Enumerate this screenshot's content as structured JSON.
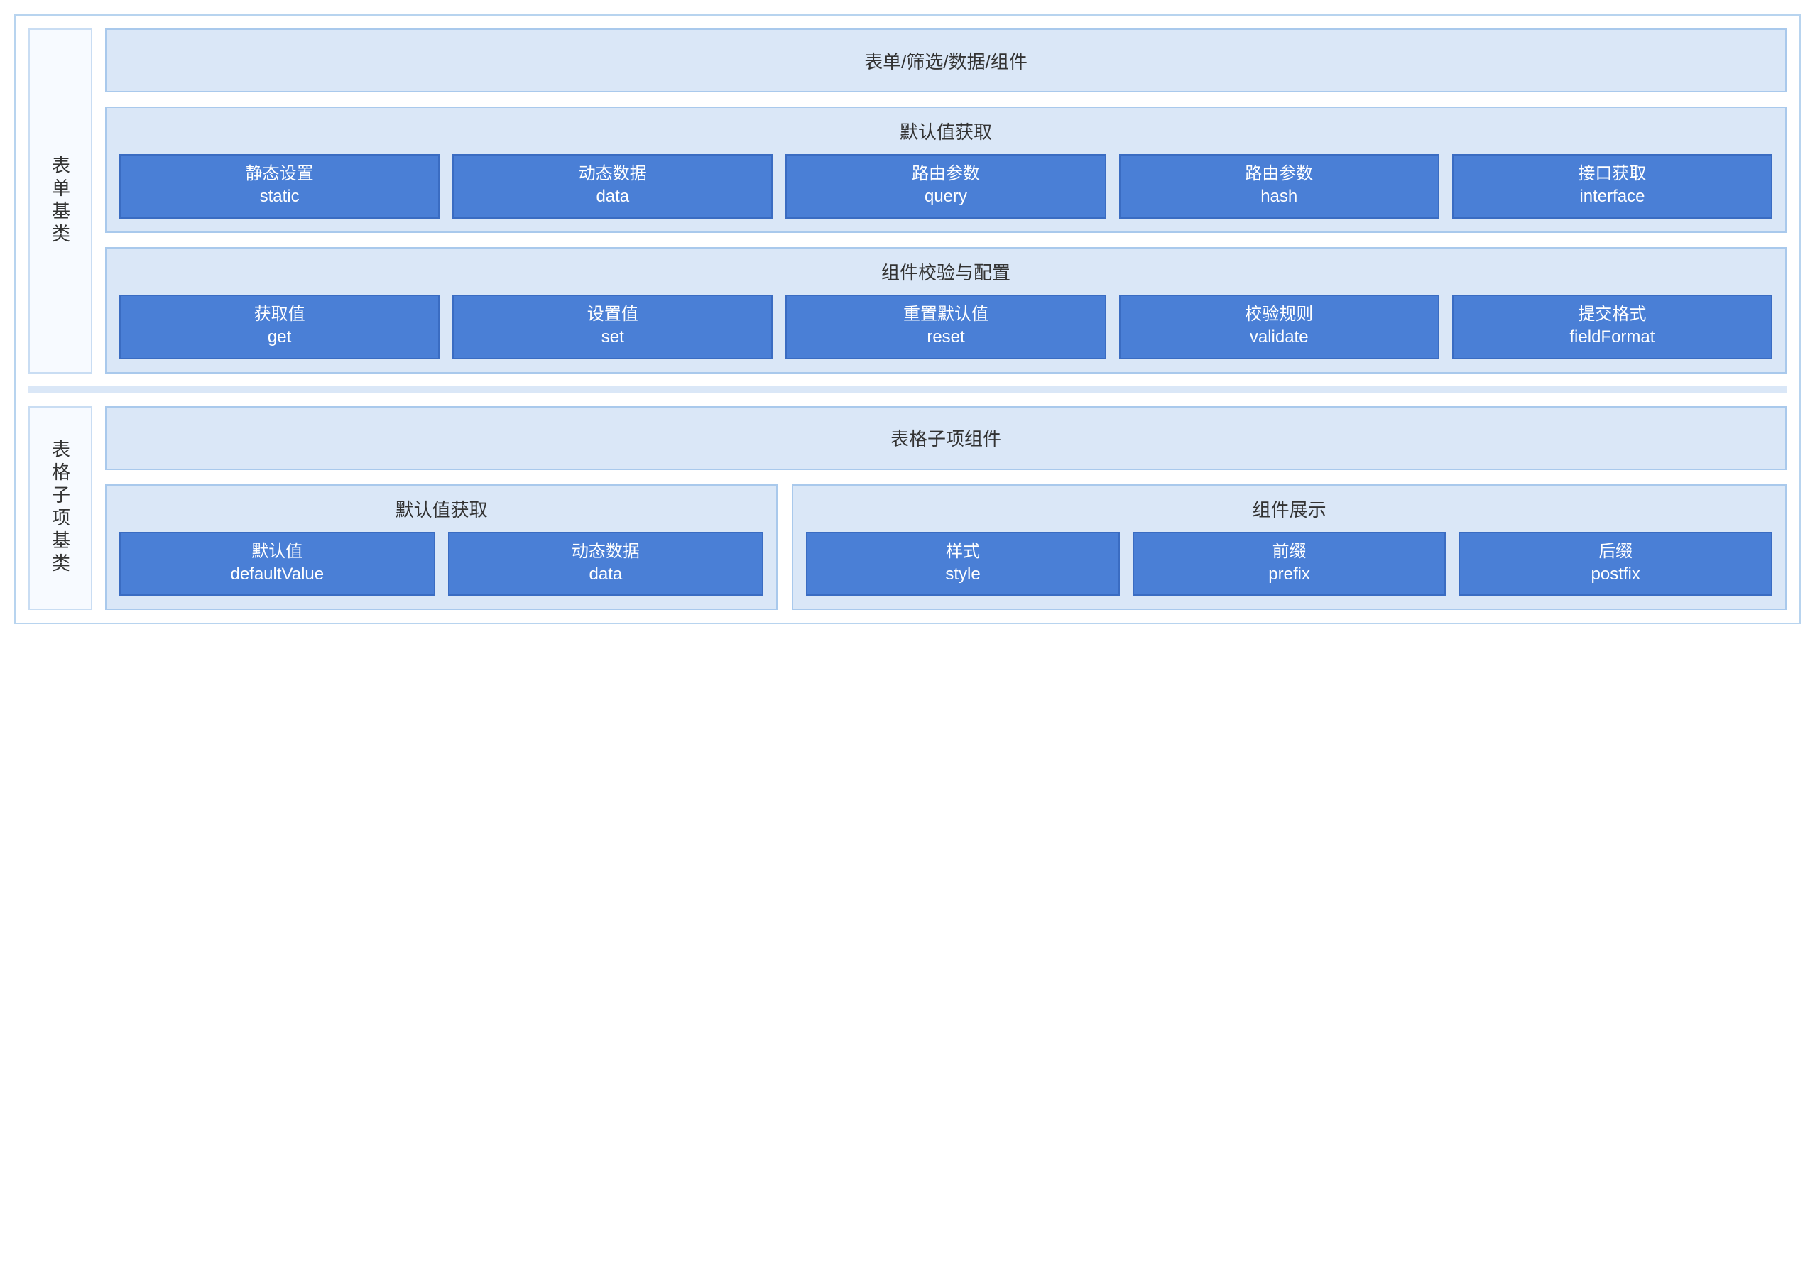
{
  "colors": {
    "frame_border": "#b8d4ef",
    "panel_bg": "#dae7f7",
    "panel_border": "#a9c9ec",
    "vlabel_bg": "#f7faff",
    "vlabel_border": "#c9ddf3",
    "tile_bg": "#4a7fd6",
    "tile_border": "#3a6cc2",
    "divider": "#dae7f7",
    "text_dark": "#333333"
  },
  "section1": {
    "label": "表单基类",
    "header": "表单/筛选/数据/组件",
    "group1": {
      "title": "默认值获取",
      "items": [
        {
          "cn": "静态设置",
          "en": "static"
        },
        {
          "cn": "动态数据",
          "en": "data"
        },
        {
          "cn": "路由参数",
          "en": "query"
        },
        {
          "cn": "路由参数",
          "en": "hash"
        },
        {
          "cn": "接口获取",
          "en": "interface"
        }
      ]
    },
    "group2": {
      "title": "组件校验与配置",
      "items": [
        {
          "cn": "获取值",
          "en": "get"
        },
        {
          "cn": "设置值",
          "en": "set"
        },
        {
          "cn": "重置默认值",
          "en": "reset"
        },
        {
          "cn": "校验规则",
          "en": "validate"
        },
        {
          "cn": "提交格式",
          "en": "fieldFormat"
        }
      ]
    }
  },
  "section2": {
    "label": "表格子项基类",
    "header": "表格子项组件",
    "groupA": {
      "title": "默认值获取",
      "items": [
        {
          "cn": "默认值",
          "en": "defaultValue"
        },
        {
          "cn": "动态数据",
          "en": "data"
        }
      ]
    },
    "groupB": {
      "title": "组件展示",
      "items": [
        {
          "cn": "样式",
          "en": "style"
        },
        {
          "cn": "前缀",
          "en": "prefix"
        },
        {
          "cn": "后缀",
          "en": "postfix"
        }
      ]
    }
  }
}
